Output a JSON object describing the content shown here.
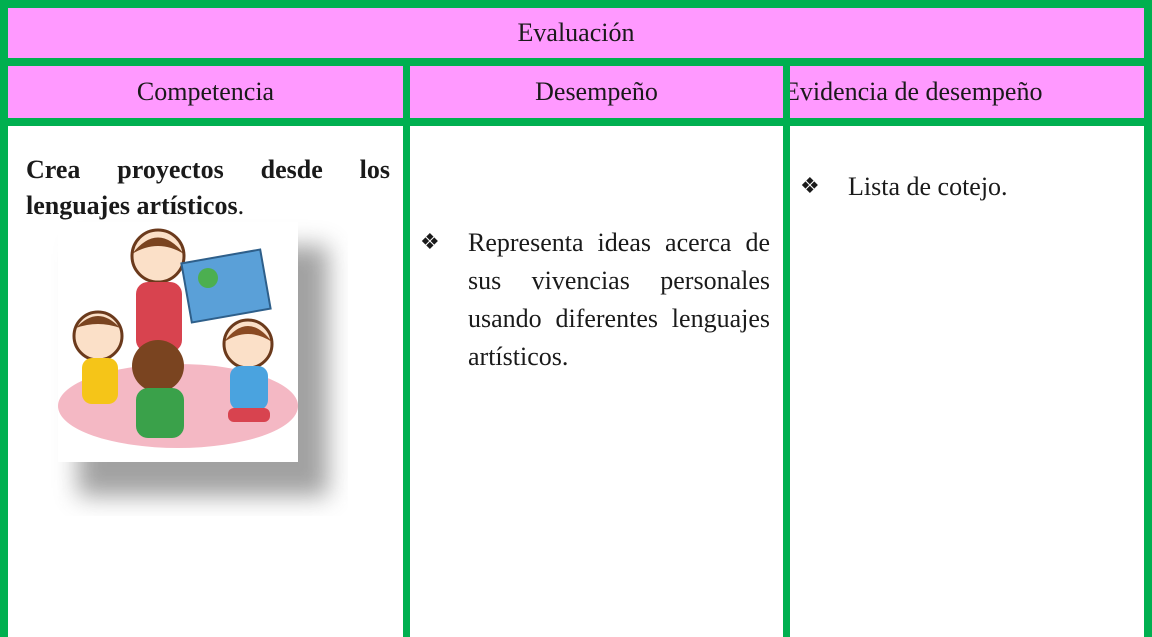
{
  "header": {
    "title": "Evaluación"
  },
  "table": {
    "columns": [
      "Competencia",
      "Desempeño",
      "Evidencia de desempeño"
    ],
    "rows": [
      {
        "competencia": {
          "bold": "Crea proyectos desde los lenguajes artísticos",
          "rest": "."
        },
        "desempeno": "Representa ideas acerca de sus vivencias personales usando diferentes lenguajes artísticos.",
        "evidencia": "Lista de cotejo."
      }
    ]
  }
}
